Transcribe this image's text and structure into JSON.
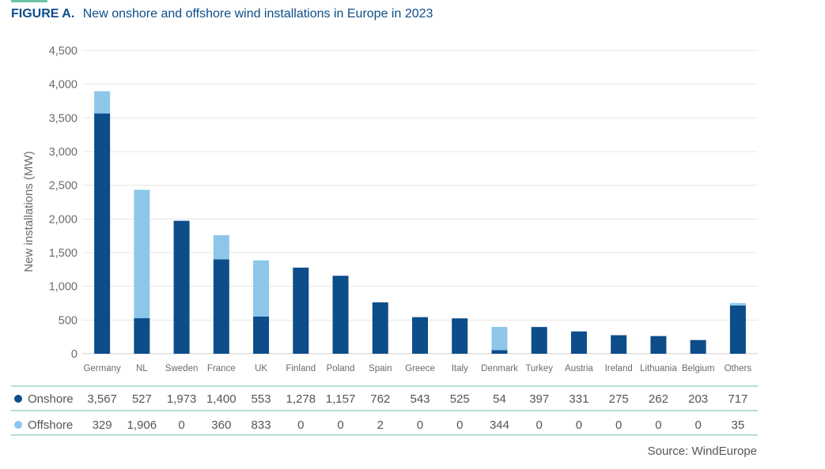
{
  "title": {
    "label": "FIGURE A.",
    "text": "New onshore and offshore wind installations in Europe in 2023"
  },
  "source": "Source: WindEurope",
  "colors": {
    "onshore": "#0c4d8a",
    "offshore": "#8ec6ea",
    "grid": "#e6e6e6",
    "table_rule": "#9fd3b9",
    "title": "#0c4d8a"
  },
  "chart_data": {
    "type": "bar",
    "stacked": true,
    "ylabel": "New installations (MW)",
    "ylim": [
      0,
      4500
    ],
    "yticks": [
      "0",
      "500",
      "1,000",
      "1,500",
      "2,000",
      "2,500",
      "3,000",
      "3,500",
      "4,000",
      "4,500"
    ],
    "grid": true,
    "legend": "table-below",
    "categories": [
      "Germany",
      "NL",
      "Sweden",
      "France",
      "UK",
      "Finland",
      "Poland",
      "Spain",
      "Greece",
      "Italy",
      "Denmark",
      "Turkey",
      "Austria",
      "Ireland",
      "Lithuania",
      "Belgium",
      "Others"
    ],
    "series": [
      {
        "name": "Onshore",
        "values": [
          3567,
          527,
          1973,
          1400,
          553,
          1278,
          1157,
          762,
          543,
          525,
          54,
          397,
          331,
          275,
          262,
          203,
          717
        ],
        "labels": [
          "3,567",
          "527",
          "1,973",
          "1,400",
          "553",
          "1,278",
          "1,157",
          "762",
          "543",
          "525",
          "54",
          "397",
          "331",
          "275",
          "262",
          "203",
          "717"
        ]
      },
      {
        "name": "Offshore",
        "values": [
          329,
          1906,
          0,
          360,
          833,
          0,
          0,
          2,
          0,
          0,
          344,
          0,
          0,
          0,
          0,
          0,
          35
        ],
        "labels": [
          "329",
          "1,906",
          "0",
          "360",
          "833",
          "0",
          "0",
          "2",
          "0",
          "0",
          "344",
          "0",
          "0",
          "0",
          "0",
          "0",
          "35"
        ]
      }
    ]
  }
}
